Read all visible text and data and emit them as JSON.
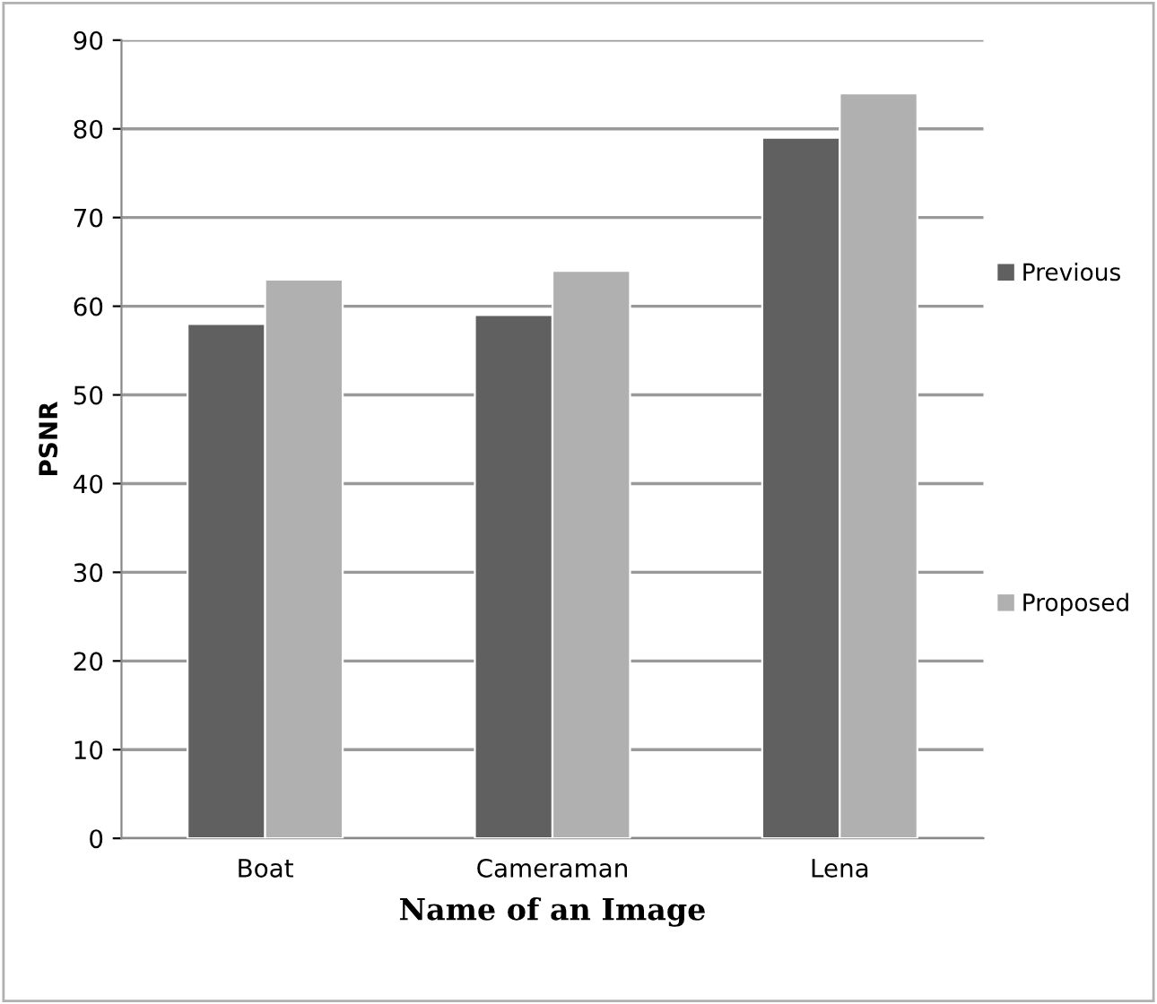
{
  "chart_data": {
    "type": "bar",
    "xlabel": "Name of an Image",
    "ylabel": "PSNR",
    "categories": [
      "Boat",
      "Cameraman",
      "Lena"
    ],
    "series": [
      {
        "name": "Previous",
        "color": "#606060",
        "values": [
          58,
          59,
          79
        ]
      },
      {
        "name": "Proposed",
        "color": "#b0b0b0",
        "values": [
          63,
          64,
          84
        ]
      }
    ],
    "ylim": [
      0,
      90
    ],
    "yticks": [
      0,
      10,
      20,
      30,
      40,
      50,
      60,
      70,
      80,
      90
    ],
    "grid": "y",
    "legend": "right"
  }
}
